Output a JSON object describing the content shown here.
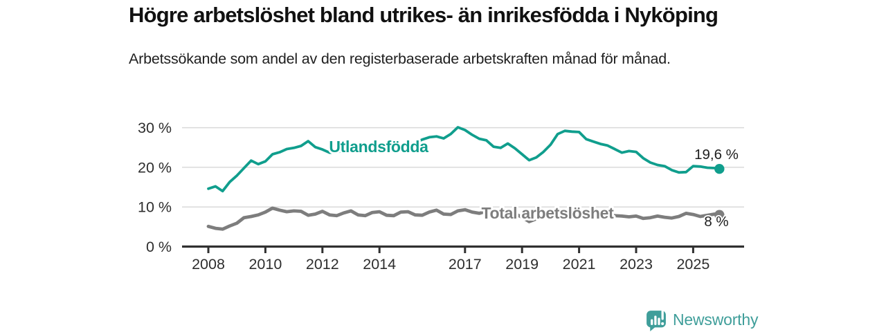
{
  "chart_data": {
    "type": "line",
    "title": "Högre arbetslöshet bland utrikes- än inrikesfödda i Nyköping",
    "subtitle": "Arbetssökande som andel av den registerbaserade arbetskraften månad för månad.",
    "xlabel": "",
    "ylabel": "",
    "x_unit": "decimal_year",
    "ylim": [
      0,
      32
    ],
    "xlim": [
      2007.08,
      2026.78
    ],
    "grid": "horizontal",
    "legend": "inline-series-labels",
    "yticks": [
      {
        "value": 0,
        "label": "0 %"
      },
      {
        "value": 10,
        "label": "10 %"
      },
      {
        "value": 20,
        "label": "20 %"
      },
      {
        "value": 30,
        "label": "30 %"
      }
    ],
    "xticks": [
      {
        "value": 2008,
        "label": "2008"
      },
      {
        "value": 2010,
        "label": "2010"
      },
      {
        "value": 2012,
        "label": "2012"
      },
      {
        "value": 2014,
        "label": "2014"
      },
      {
        "value": 2017,
        "label": "2017"
      },
      {
        "value": 2019,
        "label": "2019"
      },
      {
        "value": 2021,
        "label": "2021"
      },
      {
        "value": 2023,
        "label": "2023"
      },
      {
        "value": 2025,
        "label": "2025"
      }
    ],
    "x": [
      2008.0,
      2008.25,
      2008.5,
      2008.75,
      2009.0,
      2009.25,
      2009.5,
      2009.75,
      2010.0,
      2010.25,
      2010.5,
      2010.75,
      2011.0,
      2011.25,
      2011.5,
      2011.75,
      2012.0,
      2012.25,
      2012.5,
      2012.75,
      2013.0,
      2013.25,
      2013.5,
      2013.75,
      2014.0,
      2014.25,
      2014.5,
      2014.75,
      2015.0,
      2015.25,
      2015.5,
      2015.75,
      2016.0,
      2016.25,
      2016.5,
      2016.75,
      2017.0,
      2017.25,
      2017.5,
      2017.75,
      2018.0,
      2018.25,
      2018.5,
      2018.75,
      2019.0,
      2019.25,
      2019.5,
      2019.75,
      2020.0,
      2020.25,
      2020.5,
      2020.75,
      2021.0,
      2021.25,
      2021.5,
      2021.75,
      2022.0,
      2022.25,
      2022.5,
      2022.75,
      2023.0,
      2023.25,
      2023.5,
      2023.75,
      2024.0,
      2024.25,
      2024.5,
      2024.75,
      2025.0,
      2025.25,
      2025.5,
      2025.75,
      2025.92
    ],
    "series": [
      {
        "name": "Utlandsfödda",
        "color_key": "teal",
        "end_label": "19,6 %",
        "end_value": 19.6,
        "values": [
          14.6,
          15.2,
          14.0,
          16.3,
          17.9,
          19.8,
          21.7,
          20.8,
          21.5,
          23.3,
          23.8,
          24.6,
          24.9,
          25.4,
          26.6,
          25.1,
          24.5,
          23.7,
          23.9,
          24.1,
          24.3,
          24.0,
          24.4,
          24.6,
          24.8,
          25.0,
          25.3,
          25.6,
          25.9,
          26.2,
          27.0,
          27.6,
          27.8,
          27.3,
          28.4,
          30.1,
          29.4,
          28.2,
          27.2,
          26.8,
          25.2,
          24.9,
          26.0,
          24.8,
          23.3,
          21.8,
          22.5,
          23.9,
          25.7,
          28.4,
          29.2,
          29.0,
          28.9,
          27.1,
          26.5,
          25.9,
          25.5,
          24.6,
          23.7,
          24.1,
          23.9,
          22.3,
          21.2,
          20.6,
          20.3,
          19.3,
          18.7,
          18.8,
          20.3,
          20.2,
          19.9,
          19.8,
          19.6
        ]
      },
      {
        "name": "Total arbetslöshet",
        "color_key": "gray",
        "end_label": "8 %",
        "end_value": 8.0,
        "values": [
          5.1,
          4.6,
          4.4,
          5.2,
          5.9,
          7.3,
          7.6,
          8.0,
          8.7,
          9.7,
          9.2,
          8.8,
          9.0,
          8.9,
          7.9,
          8.2,
          8.9,
          8.0,
          7.8,
          8.5,
          9.0,
          8.0,
          7.8,
          8.6,
          8.8,
          7.9,
          7.8,
          8.7,
          8.8,
          8.0,
          7.9,
          8.7,
          9.2,
          8.2,
          8.1,
          9.0,
          9.3,
          8.7,
          8.4,
          8.9,
          8.8,
          8.1,
          7.9,
          8.3,
          7.4,
          6.3,
          7.0,
          7.6,
          7.8,
          8.8,
          9.2,
          9.0,
          8.9,
          8.5,
          8.0,
          7.9,
          8.0,
          7.8,
          7.7,
          7.5,
          7.7,
          7.1,
          7.3,
          7.7,
          7.4,
          7.2,
          7.6,
          8.4,
          8.1,
          7.6,
          7.9,
          8.2,
          8.0
        ]
      }
    ]
  },
  "colors": {
    "teal": "#109E8D",
    "gray": "#7D7D7D",
    "axis": "#303030",
    "grid": "#D9D9D9",
    "tick_text": "#2E2E2E",
    "value_text": "#1C1C1C",
    "brand": "#3F9E9A"
  },
  "footer": {
    "brand": "Newsworthy"
  }
}
